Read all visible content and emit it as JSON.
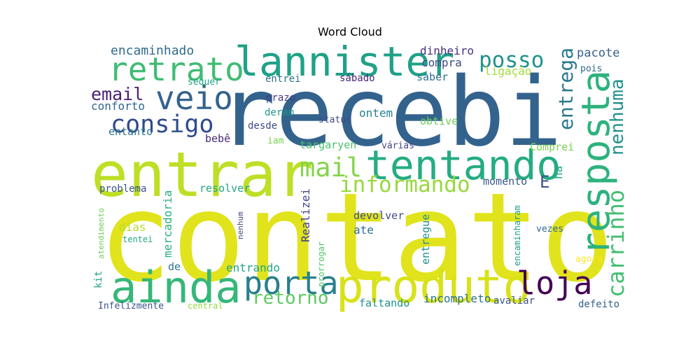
{
  "chart_data": {
    "type": "word-cloud",
    "title": "Word Cloud",
    "background": "#ffffff",
    "colormap": "viridis",
    "words": [
      {
        "text": "contato",
        "color": "#e1e31c",
        "weight": 1.0
      },
      {
        "text": "recebi",
        "color": "#33638d",
        "weight": 0.95
      },
      {
        "text": "entrar",
        "color": "#bddf26",
        "weight": 0.72
      },
      {
        "text": "produto",
        "color": "#d8e219",
        "weight": 0.55
      },
      {
        "text": "ainda",
        "color": "#35b779",
        "weight": 0.52
      },
      {
        "text": "lannister",
        "color": "#1fa187",
        "weight": 0.5
      },
      {
        "text": "tentando",
        "color": "#25ac82",
        "weight": 0.5
      },
      {
        "text": "resposta",
        "color": "#2db27d",
        "weight": 0.48
      },
      {
        "text": "retrato",
        "color": "#3fbc73",
        "weight": 0.4
      },
      {
        "text": "veio",
        "color": "#33638d",
        "weight": 0.4
      },
      {
        "text": "porta",
        "color": "#277f8e",
        "weight": 0.38
      },
      {
        "text": "loja",
        "color": "#440154",
        "weight": 0.38
      },
      {
        "text": "mail",
        "color": "#84d44b",
        "weight": 0.33
      },
      {
        "text": "consigo",
        "color": "#2f4b8b",
        "weight": 0.3
      },
      {
        "text": "carrinho",
        "color": "#42be71",
        "weight": 0.28
      },
      {
        "text": "informando",
        "color": "#98d83e",
        "weight": 0.28
      },
      {
        "text": "posso",
        "color": "#20928c",
        "weight": 0.28
      },
      {
        "text": "entrega",
        "color": "#2a788e",
        "weight": 0.26
      },
      {
        "text": "nenhuma",
        "color": "#21918c",
        "weight": 0.26
      },
      {
        "text": "retorno",
        "color": "#5ec962",
        "weight": 0.26
      },
      {
        "text": "email",
        "color": "#482173",
        "weight": 0.26
      },
      {
        "text": "E",
        "color": "#3b528b",
        "weight": 0.22
      },
      {
        "text": "encaminhado",
        "color": "#306a8e",
        "weight": 0.16
      },
      {
        "text": "pacote",
        "color": "#355f8d",
        "weight": 0.16
      },
      {
        "text": "dinheiro",
        "color": "#46317e",
        "weight": 0.14
      },
      {
        "text": "compra",
        "color": "#3e4a89",
        "weight": 0.14
      },
      {
        "text": "ligação",
        "color": "#a5db36",
        "weight": 0.14
      },
      {
        "text": "pois",
        "color": "#31688e",
        "weight": 0.13
      },
      {
        "text": "entrei",
        "color": "#2d708e",
        "weight": 0.13
      },
      {
        "text": "sábado",
        "color": "#482677",
        "weight": 0.13
      },
      {
        "text": "saber",
        "color": "#2d718e",
        "weight": 0.13
      },
      {
        "text": "sequer",
        "color": "#20a486",
        "weight": 0.12
      },
      {
        "text": "prazo",
        "color": "#443a83",
        "weight": 0.12
      },
      {
        "text": "conforto",
        "color": "#31678e",
        "weight": 0.15
      },
      {
        "text": "ontem",
        "color": "#26828e",
        "weight": 0.16
      },
      {
        "text": "deram",
        "color": "#1f968b",
        "weight": 0.13
      },
      {
        "text": "status",
        "color": "#404688",
        "weight": 0.12
      },
      {
        "text": "obtive",
        "color": "#6ece58",
        "weight": 0.14
      },
      {
        "text": "entanto",
        "color": "#2c728e",
        "weight": 0.15
      },
      {
        "text": "bebê",
        "color": "#482878",
        "weight": 0.14
      },
      {
        "text": "desde",
        "color": "#3f4788",
        "weight": 0.13
      },
      {
        "text": "Comprei",
        "color": "#7ad151",
        "weight": 0.14
      },
      {
        "text": "iam",
        "color": "#7ad151",
        "weight": 0.12
      },
      {
        "text": "targaryen",
        "color": "#4ac16d",
        "weight": 0.14
      },
      {
        "text": "várias",
        "color": "#404588",
        "weight": 0.12
      },
      {
        "text": "ha",
        "color": "#22a884",
        "weight": 0.14
      },
      {
        "text": "momento",
        "color": "#38598c",
        "weight": 0.15
      },
      {
        "text": "problema",
        "color": "#3b528b",
        "weight": 0.14
      },
      {
        "text": "mercadoria",
        "color": "#29af7f",
        "weight": 0.16
      },
      {
        "text": "resolver",
        "color": "#21a685",
        "weight": 0.15
      },
      {
        "text": "Realizei",
        "color": "#414487",
        "weight": 0.16
      },
      {
        "text": "kit",
        "color": "#22a785",
        "weight": 0.14
      },
      {
        "text": "atendimento",
        "color": "#6ece58",
        "weight": 0.11
      },
      {
        "text": "encaminharam",
        "color": "#1f9e89",
        "weight": 0.12
      },
      {
        "text": "nenhum",
        "color": "#3f4788",
        "weight": 0.11
      },
      {
        "text": "dias",
        "color": "#b5de2b",
        "weight": 0.16
      },
      {
        "text": "devolver",
        "color": "#3e4c8a",
        "weight": 0.15
      },
      {
        "text": "entregue",
        "color": "#21908d",
        "weight": 0.15
      },
      {
        "text": "ate",
        "color": "#2e6e8e",
        "weight": 0.15
      },
      {
        "text": "vezes",
        "color": "#31688e",
        "weight": 0.13
      },
      {
        "text": "tentei",
        "color": "#23a983",
        "weight": 0.12
      },
      {
        "text": "prorrogar",
        "color": "#52c569",
        "weight": 0.12
      },
      {
        "text": "de",
        "color": "#2a778e",
        "weight": 0.15
      },
      {
        "text": "entrando",
        "color": "#22a785",
        "weight": 0.16
      },
      {
        "text": "agora",
        "color": "#fde725",
        "weight": 0.12
      },
      {
        "text": "faltando",
        "color": "#21918c",
        "weight": 0.16
      },
      {
        "text": "incompleto",
        "color": "#2c738e",
        "weight": 0.16
      },
      {
        "text": "avaliar",
        "color": "#39568c",
        "weight": 0.14
      },
      {
        "text": "defeito",
        "color": "#33638d",
        "weight": 0.14
      },
      {
        "text": "Infelizmente",
        "color": "#3b528b",
        "weight": 0.13
      },
      {
        "text": "central",
        "color": "#95d840",
        "weight": 0.12
      }
    ]
  }
}
